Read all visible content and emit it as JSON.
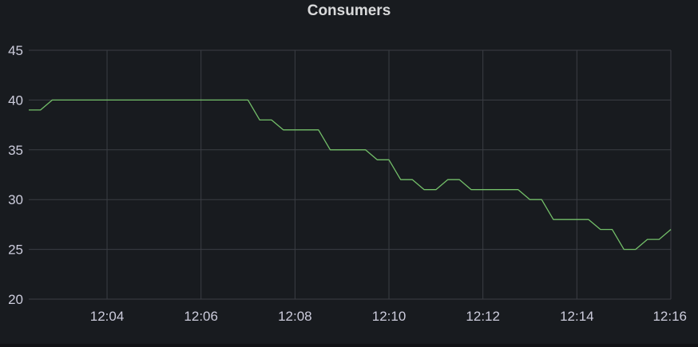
{
  "panel": {
    "title": "Consumers"
  },
  "chart_data": {
    "type": "line",
    "title": "Consumers",
    "xlabel": "",
    "ylabel": "",
    "ylim": [
      20,
      45
    ],
    "xlim": [
      "12:02:20",
      "12:16:00"
    ],
    "y_ticks": [
      "20",
      "25",
      "30",
      "35",
      "40",
      "45"
    ],
    "x_ticks": [
      "12:04",
      "12:06",
      "12:08",
      "12:10",
      "12:12",
      "12:14",
      "12:16"
    ],
    "grid": true,
    "legend": "none",
    "colors": {
      "series": "#73bf69",
      "background": "#181b1f",
      "grid": "#3b3e44",
      "text": "#ccccdc"
    },
    "series": [
      {
        "x": [
          "12:02:20",
          "12:02:35",
          "12:02:50",
          "12:07:00",
          "12:07:15",
          "12:07:30",
          "12:07:45",
          "12:08:00",
          "12:08:30",
          "12:08:45",
          "12:09:30",
          "12:09:45",
          "12:10:00",
          "12:10:15",
          "12:10:30",
          "12:10:45",
          "12:11:00",
          "12:11:15",
          "12:11:30",
          "12:11:45",
          "12:12:00",
          "12:12:45",
          "12:13:00",
          "12:13:15",
          "12:13:30",
          "12:14:15",
          "12:14:30",
          "12:14:45",
          "12:15:00",
          "12:15:15",
          "12:15:30",
          "12:15:45",
          "12:16:00"
        ],
        "values": [
          39,
          39,
          40,
          40,
          38,
          38,
          37,
          37,
          37,
          35,
          35,
          34,
          34,
          32,
          32,
          31,
          31,
          32,
          32,
          31,
          31,
          31,
          30,
          30,
          28,
          28,
          27,
          27,
          25,
          25,
          26,
          26,
          27
        ]
      }
    ]
  }
}
